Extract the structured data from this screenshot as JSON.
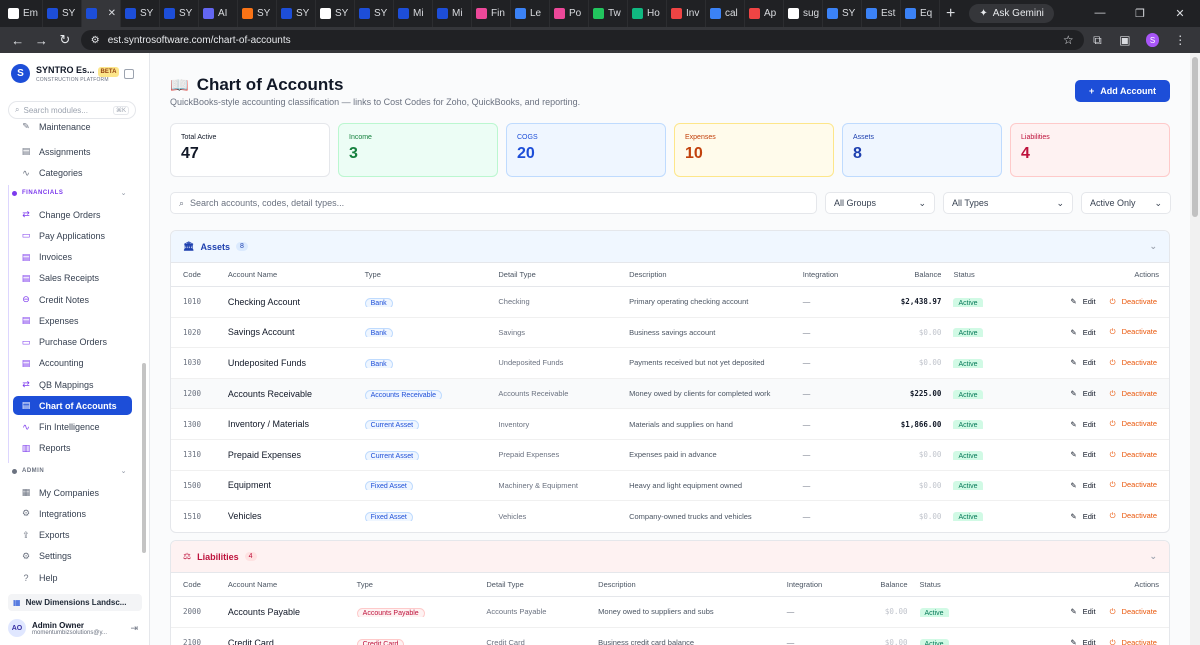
{
  "browser": {
    "tabs": [
      {
        "label": "Em",
        "color": "#ffffff"
      },
      {
        "label": "SY",
        "color": "#1d4ed8"
      },
      {
        "label": "",
        "color": "#1d4ed8",
        "active": true
      },
      {
        "label": "SY",
        "color": "#1d4ed8"
      },
      {
        "label": "SY",
        "color": "#1d4ed8"
      },
      {
        "label": "AI",
        "color": "#6366f1"
      },
      {
        "label": "SY",
        "color": "#f97316"
      },
      {
        "label": "SY",
        "color": "#1d4ed8"
      },
      {
        "label": "SY",
        "color": "#ffffff"
      },
      {
        "label": "SY",
        "color": "#1d4ed8"
      },
      {
        "label": "Mi",
        "color": "#1d4ed8"
      },
      {
        "label": "Mi",
        "color": "#1d4ed8"
      },
      {
        "label": "Fin",
        "color": "#ec4899"
      },
      {
        "label": "Le",
        "color": "#3b82f6"
      },
      {
        "label": "Po",
        "color": "#ec4899"
      },
      {
        "label": "Tw",
        "color": "#22c55e"
      },
      {
        "label": "Ho",
        "color": "#10b981"
      },
      {
        "label": "Inv",
        "color": "#ef4444"
      },
      {
        "label": "cal",
        "color": "#3b82f6"
      },
      {
        "label": "Ap",
        "color": "#ef4444"
      },
      {
        "label": "sug",
        "color": "#ffffff"
      },
      {
        "label": "SY",
        "color": "#3b82f6"
      },
      {
        "label": "Est",
        "color": "#3b82f6"
      },
      {
        "label": "Eq",
        "color": "#3b82f6"
      }
    ],
    "gemini": "Ask Gemini",
    "url": "est.syntrosoftware.com/chart-of-accounts",
    "profile": "S"
  },
  "sidebar": {
    "brand": "SYNTRO Es...",
    "brand_sub": "CONSTRUCTION PLATFORM",
    "beta": "BETA",
    "search_placeholder": "Search modules...",
    "search_kbd": "⌘K",
    "top_items": [
      {
        "label": "Maintenance",
        "icon": "wrench-icon"
      },
      {
        "label": "Assignments",
        "icon": "calendar-icon"
      },
      {
        "label": "Categories",
        "icon": "pulse-icon"
      }
    ],
    "financials_label": "FINANCIALS",
    "financial_items": [
      {
        "label": "Change Orders"
      },
      {
        "label": "Pay Applications"
      },
      {
        "label": "Invoices"
      },
      {
        "label": "Sales Receipts"
      },
      {
        "label": "Credit Notes"
      },
      {
        "label": "Expenses"
      },
      {
        "label": "Purchase Orders"
      },
      {
        "label": "Accounting"
      },
      {
        "label": "QB Mappings"
      },
      {
        "label": "Chart of Accounts",
        "active": true
      },
      {
        "label": "Fin Intelligence"
      },
      {
        "label": "Reports"
      }
    ],
    "admin_label": "ADMIN",
    "admin_items": [
      {
        "label": "My Companies"
      },
      {
        "label": "Integrations"
      },
      {
        "label": "Exports"
      },
      {
        "label": "Settings"
      },
      {
        "label": "Help"
      }
    ],
    "company": "New Dimensions Landsc...",
    "user_initials": "AO",
    "user_name": "Admin Owner",
    "user_email": "momentumbizsolutions@y..."
  },
  "page": {
    "title": "Chart of Accounts",
    "subtitle": "QuickBooks-style accounting classification — links to Cost Codes for Zoho, QuickBooks, and reporting.",
    "add_button": "Add Account"
  },
  "stats": [
    {
      "label": "Total Active",
      "value": "47",
      "bg": "#ffffff",
      "border": "#e5e7eb",
      "fg": "#111827",
      "lblfg": "#111827"
    },
    {
      "label": "Income",
      "value": "3",
      "bg": "#ecfdf5",
      "border": "#bbf7d0",
      "fg": "#15803d",
      "lblfg": "#15803d"
    },
    {
      "label": "COGS",
      "value": "20",
      "bg": "#eff6ff",
      "border": "#bfdbfe",
      "fg": "#1d4ed8",
      "lblfg": "#1d4ed8"
    },
    {
      "label": "Expenses",
      "value": "10",
      "bg": "#fffbeb",
      "border": "#fde68a",
      "fg": "#c2410c",
      "lblfg": "#c2410c"
    },
    {
      "label": "Assets",
      "value": "8",
      "bg": "#eff6ff",
      "border": "#bfdbfe",
      "fg": "#1e40af",
      "lblfg": "#1e40af"
    },
    {
      "label": "Liabilities",
      "value": "4",
      "bg": "#fef2f2",
      "border": "#fecaca",
      "fg": "#be123c",
      "lblfg": "#be123c"
    }
  ],
  "filters": {
    "search_placeholder": "Search accounts, codes, detail types...",
    "groups": "All Groups",
    "types": "All Types",
    "status": "Active Only"
  },
  "columns": {
    "code": "Code",
    "name": "Account Name",
    "type": "Type",
    "detail": "Detail Type",
    "desc": "Description",
    "integration": "Integration",
    "balance": "Balance",
    "status": "Status",
    "actions": "Actions"
  },
  "assets": {
    "label": "Assets",
    "count": "8",
    "rows": [
      {
        "code": "1010",
        "name": "Checking Account",
        "type": "Bank",
        "detail": "Checking",
        "desc": "Primary operating checking account",
        "integration": "—",
        "balance": "$2,438.97",
        "zero": false,
        "status": "Active"
      },
      {
        "code": "1020",
        "name": "Savings Account",
        "type": "Bank",
        "detail": "Savings",
        "desc": "Business savings account",
        "integration": "—",
        "balance": "$0.00",
        "zero": true,
        "status": "Active"
      },
      {
        "code": "1030",
        "name": "Undeposited Funds",
        "type": "Bank",
        "detail": "Undeposited Funds",
        "desc": "Payments received but not yet deposited",
        "integration": "—",
        "balance": "$0.00",
        "zero": true,
        "status": "Active"
      },
      {
        "code": "1200",
        "name": "Accounts Receivable",
        "type": "Accounts Receivable",
        "detail": "Accounts Receivable",
        "desc": "Money owed by clients for completed work",
        "integration": "—",
        "balance": "$225.00",
        "zero": false,
        "status": "Active",
        "hl": true
      },
      {
        "code": "1300",
        "name": "Inventory / Materials",
        "type": "Current Asset",
        "detail": "Inventory",
        "desc": "Materials and supplies on hand",
        "integration": "—",
        "balance": "$1,866.00",
        "zero": false,
        "status": "Active"
      },
      {
        "code": "1310",
        "name": "Prepaid Expenses",
        "type": "Current Asset",
        "detail": "Prepaid Expenses",
        "desc": "Expenses paid in advance",
        "integration": "—",
        "balance": "$0.00",
        "zero": true,
        "status": "Active"
      },
      {
        "code": "1500",
        "name": "Equipment",
        "type": "Fixed Asset",
        "detail": "Machinery & Equipment",
        "desc": "Heavy and light equipment owned",
        "integration": "—",
        "balance": "$0.00",
        "zero": true,
        "status": "Active"
      },
      {
        "code": "1510",
        "name": "Vehicles",
        "type": "Fixed Asset",
        "detail": "Vehicles",
        "desc": "Company-owned trucks and vehicles",
        "integration": "—",
        "balance": "$0.00",
        "zero": true,
        "status": "Active"
      }
    ]
  },
  "liabilities": {
    "label": "Liabilities",
    "count": "4",
    "rows": [
      {
        "code": "2000",
        "name": "Accounts Payable",
        "type": "Accounts Payable",
        "detail": "Accounts Payable",
        "desc": "Money owed to suppliers and subs",
        "integration": "—",
        "balance": "$0.00",
        "zero": true,
        "status": "Active"
      },
      {
        "code": "2100",
        "name": "Credit Card",
        "type": "Credit Card",
        "detail": "Credit Card",
        "desc": "Business credit card balance",
        "integration": "—",
        "balance": "$0.00",
        "zero": true,
        "status": "Active"
      }
    ]
  },
  "actions": {
    "edit": "Edit",
    "deactivate": "Deactivate"
  }
}
